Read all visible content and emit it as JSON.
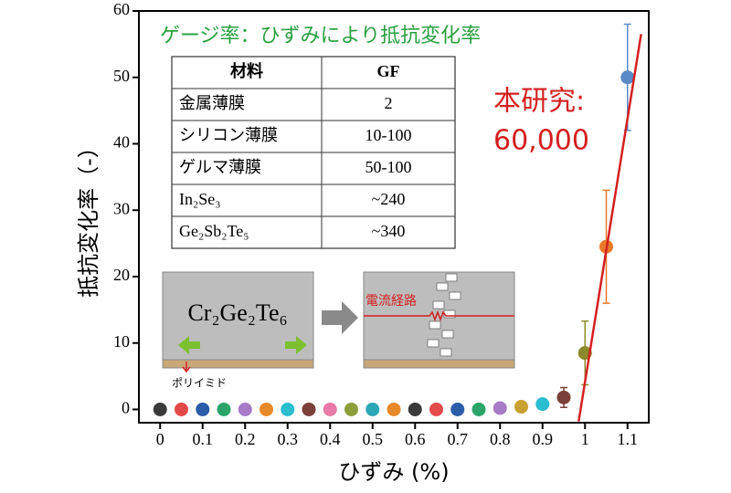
{
  "chart_data": {
    "type": "scatter",
    "x": [
      0,
      0.05,
      0.1,
      0.15,
      0.2,
      0.25,
      0.3,
      0.35,
      0.4,
      0.45,
      0.5,
      0.55,
      0.6,
      0.65,
      0.7,
      0.75,
      0.8,
      0.85,
      0.9,
      0.95,
      1.0,
      1.05,
      1.1
    ],
    "values": [
      0,
      0,
      0,
      0,
      0,
      0,
      0,
      0,
      0,
      0,
      0,
      0,
      0,
      0,
      0,
      0,
      0.2,
      0.4,
      0.8,
      1.8,
      8.5,
      24.5,
      50
    ],
    "errors": [
      null,
      null,
      null,
      null,
      null,
      null,
      null,
      null,
      null,
      null,
      null,
      null,
      null,
      null,
      null,
      null,
      null,
      null,
      null,
      1.5,
      4.8,
      8.5,
      8
    ],
    "colors": [
      "#3a3a3a",
      "#e34a4a",
      "#2b5ca8",
      "#2aa468",
      "#a77ac8",
      "#e8892a",
      "#2bbdd0",
      "#7a3f38",
      "#e77aa6",
      "#8c9e3a",
      "#2aa8b8",
      "#e8892a",
      "#3a3a3a",
      "#e34a4a",
      "#2b5ca8",
      "#2aa468",
      "#a77ac8",
      "#c9a032",
      "#2bbdd0",
      "#7a3f38",
      "#8a8a2c",
      "#e8792a",
      "#5a8ac8"
    ],
    "xlim": [
      -0.05,
      1.15
    ],
    "ylim": [
      -2,
      60
    ],
    "xticks": [
      0,
      0.1,
      0.2,
      0.3,
      0.4,
      0.5,
      0.6,
      0.7,
      0.8,
      0.9,
      1,
      1.1
    ],
    "yticks": [
      0,
      10,
      20,
      30,
      40,
      50,
      60
    ],
    "x_label": "ひずみ (%)",
    "y_label": "抵抗変化率（-）",
    "fit_line": {
      "x": [
        0.985,
        1.132
      ],
      "y": [
        -1.8,
        56.5
      ],
      "color": "#d42020"
    },
    "annotation_gauge": "ゲージ率：ひずみにより抵抗変化率",
    "annotation_study": [
      "本研究:",
      "60,000"
    ]
  },
  "table": {
    "header": [
      "材料",
      "GF"
    ],
    "rows": [
      [
        "金属薄膜",
        "2"
      ],
      [
        "シリコン薄膜",
        "10-100"
      ],
      [
        "ゲルマ薄膜",
        "50-100"
      ],
      [
        "In₂Se₃",
        "~240"
      ],
      [
        "Ge₂Sb₂Te₅",
        "~340"
      ]
    ]
  },
  "diagram": {
    "material": "Cr₂Ge₂Te₆",
    "current_path": "電流経路",
    "substrate": "ポリイミド"
  }
}
